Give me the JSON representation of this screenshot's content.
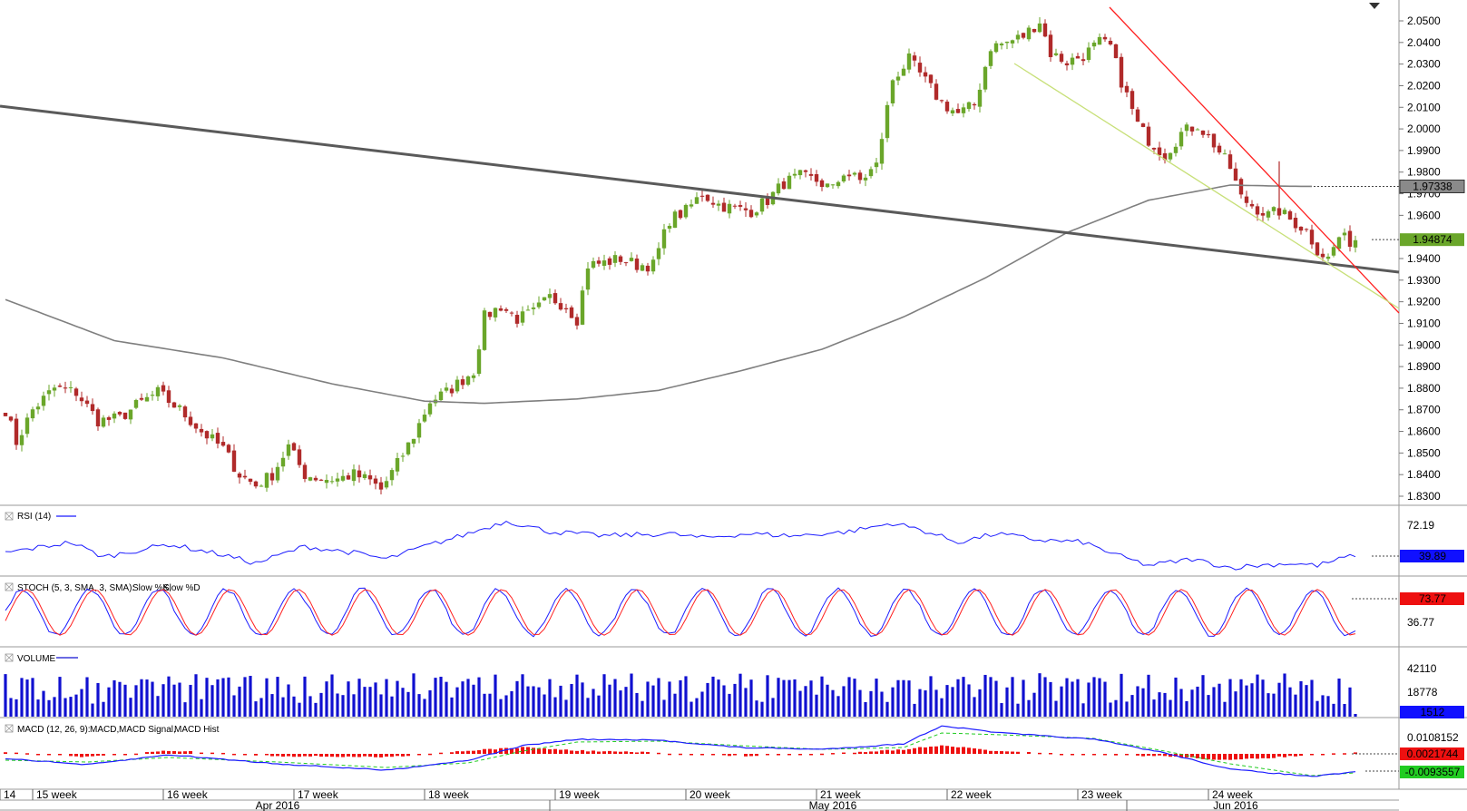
{
  "colors": {
    "bull": "#6aa62a",
    "bear": "#b02a2a",
    "ma200": "#7f7f7f",
    "trendline_gray": "#5a5a5a",
    "trendline_red": "#ff2020",
    "trendline_yellow": "#c8e07a",
    "rsi": "#1c1cff",
    "stoch_k": "#1c1cff",
    "stoch_d": "#ff2020",
    "volume": "#1010d0",
    "macd": "#1c1cff",
    "macd_signal": "#22cc22",
    "macd_hist": "#ee1010"
  },
  "chart_data": {
    "type": "candlestick",
    "instrument_price_axis": {
      "ticks": [
        "2.0500",
        "2.0400",
        "2.0300",
        "2.0200",
        "2.0100",
        "2.0000",
        "1.9900",
        "1.9800",
        "1.9700",
        "1.9600",
        "1.9400",
        "1.9300",
        "1.9200",
        "1.9100",
        "1.9000",
        "1.8900",
        "1.8800",
        "1.8700",
        "1.8600",
        "1.8500",
        "1.8400",
        "1.8300"
      ],
      "ylim": [
        1.826,
        2.056
      ],
      "tags": {
        "ma_value": "1.97338",
        "last_price": "1.94874"
      }
    },
    "price_anchors": [
      [
        0,
        1.87
      ],
      [
        2,
        1.855
      ],
      [
        5,
        1.87
      ],
      [
        9,
        1.88
      ],
      [
        13,
        1.878
      ],
      [
        17,
        1.865
      ],
      [
        21,
        1.866
      ],
      [
        24,
        1.872
      ],
      [
        28,
        1.878
      ],
      [
        32,
        1.87
      ],
      [
        36,
        1.86
      ],
      [
        40,
        1.852
      ],
      [
        43,
        1.84
      ],
      [
        46,
        1.835
      ],
      [
        49,
        1.84
      ],
      [
        52,
        1.853
      ],
      [
        55,
        1.84
      ],
      [
        58,
        1.838
      ],
      [
        61,
        1.838
      ],
      [
        64,
        1.84
      ],
      [
        67,
        1.837
      ],
      [
        69,
        1.833
      ],
      [
        72,
        1.845
      ],
      [
        75,
        1.858
      ],
      [
        78,
        1.874
      ],
      [
        81,
        1.878
      ],
      [
        84,
        1.884
      ],
      [
        86,
        1.888
      ],
      [
        88,
        1.913
      ],
      [
        91,
        1.918
      ],
      [
        94,
        1.912
      ],
      [
        97,
        1.915
      ],
      [
        100,
        1.922
      ],
      [
        103,
        1.918
      ],
      [
        105,
        1.912
      ],
      [
        107,
        1.937
      ],
      [
        110,
        1.938
      ],
      [
        113,
        1.94
      ],
      [
        116,
        1.937
      ],
      [
        119,
        1.937
      ],
      [
        122,
        1.958
      ],
      [
        125,
        1.962
      ],
      [
        128,
        1.97
      ],
      [
        131,
        1.965
      ],
      [
        134,
        1.963
      ],
      [
        137,
        1.962
      ],
      [
        140,
        1.967
      ],
      [
        143,
        1.975
      ],
      [
        146,
        1.978
      ],
      [
        149,
        1.976
      ],
      [
        152,
        1.972
      ],
      [
        154,
        1.98
      ],
      [
        157,
        1.976
      ],
      [
        160,
        1.983
      ],
      [
        163,
        2.023
      ],
      [
        166,
        2.032
      ],
      [
        169,
        2.022
      ],
      [
        172,
        2.012
      ],
      [
        175,
        2.007
      ],
      [
        178,
        2.011
      ],
      [
        181,
        2.038
      ],
      [
        184,
        2.04
      ],
      [
        187,
        2.043
      ],
      [
        190,
        2.05
      ],
      [
        192,
        2.035
      ],
      [
        195,
        2.031
      ],
      [
        198,
        2.034
      ],
      [
        201,
        2.04
      ],
      [
        203,
        2.038
      ],
      [
        205,
        2.022
      ],
      [
        208,
        2.002
      ],
      [
        210,
        1.995
      ],
      [
        213,
        1.988
      ],
      [
        216,
        1.998
      ],
      [
        219,
        2.002
      ],
      [
        222,
        1.993
      ],
      [
        225,
        1.982
      ],
      [
        227,
        1.968
      ],
      [
        230,
        1.963
      ],
      [
        232,
        1.96
      ],
      [
        234,
        1.962
      ],
      [
        236,
        1.958
      ],
      [
        239,
        1.953
      ],
      [
        241,
        1.944
      ],
      [
        243,
        1.94
      ],
      [
        245,
        1.95
      ],
      [
        247,
        1.948
      ],
      [
        248,
        1.949
      ]
    ],
    "ma200_anchors": [
      [
        0,
        1.921
      ],
      [
        20,
        1.902
      ],
      [
        40,
        1.894
      ],
      [
        60,
        1.882
      ],
      [
        77,
        1.874
      ],
      [
        88,
        1.873
      ],
      [
        105,
        1.875
      ],
      [
        120,
        1.879
      ],
      [
        135,
        1.888
      ],
      [
        150,
        1.898
      ],
      [
        165,
        1.913
      ],
      [
        180,
        1.931
      ],
      [
        195,
        1.952
      ],
      [
        210,
        1.967
      ],
      [
        225,
        1.974
      ],
      [
        235,
        1.9735
      ],
      [
        240,
        1.9734
      ]
    ],
    "candle_count": 249,
    "indicators": {
      "rsi": {
        "label": "RSI (14)",
        "ticks": [
          "72.19"
        ],
        "last": "39.89",
        "anchors": [
          [
            0,
            42
          ],
          [
            12,
            52
          ],
          [
            18,
            38
          ],
          [
            30,
            50
          ],
          [
            40,
            40
          ],
          [
            46,
            32
          ],
          [
            55,
            48
          ],
          [
            64,
            42
          ],
          [
            70,
            36
          ],
          [
            77,
            48
          ],
          [
            85,
            60
          ],
          [
            92,
            72
          ],
          [
            100,
            62
          ],
          [
            110,
            58
          ],
          [
            122,
            60
          ],
          [
            128,
            56
          ],
          [
            136,
            60
          ],
          [
            145,
            58
          ],
          [
            155,
            62
          ],
          [
            163,
            70
          ],
          [
            168,
            64
          ],
          [
            175,
            52
          ],
          [
            182,
            60
          ],
          [
            190,
            54
          ],
          [
            198,
            52
          ],
          [
            204,
            40
          ],
          [
            210,
            30
          ],
          [
            218,
            36
          ],
          [
            225,
            28
          ],
          [
            230,
            30
          ],
          [
            236,
            32
          ],
          [
            241,
            30
          ],
          [
            248,
            40
          ]
        ]
      },
      "stoch": {
        "label": "STOCH (5, 3, SMA, 3, SMA):",
        "label_k": "Slow %K,",
        "label_d": "Slow %D",
        "ticks": [
          "36.77"
        ],
        "last": "73.77",
        "period": 13
      },
      "volume": {
        "label": "VOLUME",
        "ticks": [
          "42110",
          "18778"
        ],
        "last": "1512"
      },
      "macd": {
        "label": "MACD (12, 26, 9):",
        "label_macd": "MACD,",
        "label_signal": "MACD Signal,",
        "label_hist": "MACD Hist",
        "ticks": [
          "0.0108152"
        ],
        "tag_hist": "0.0021744",
        "tag_signal": "-0.0093557"
      }
    },
    "time_axis": {
      "weeks": [
        {
          "label": "14",
          "index": -3
        },
        {
          "label": "15 week",
          "index": 5
        },
        {
          "label": "16 week",
          "index": 29
        },
        {
          "label": "17 week",
          "index": 53
        },
        {
          "label": "18 week",
          "index": 77
        },
        {
          "label": "19 week",
          "index": 101
        },
        {
          "label": "20 week",
          "index": 125
        },
        {
          "label": "21 week",
          "index": 149
        },
        {
          "label": "22 week",
          "index": 173
        },
        {
          "label": "23 week",
          "index": 197
        },
        {
          "label": "24 week",
          "index": 221
        }
      ],
      "months": [
        {
          "label": "Apr 2016",
          "index": 50,
          "sep": 100
        },
        {
          "label": "May 2016",
          "index": 152,
          "sep": 206
        },
        {
          "label": "Jun 2016",
          "index": 226,
          "sep": null
        }
      ]
    }
  }
}
